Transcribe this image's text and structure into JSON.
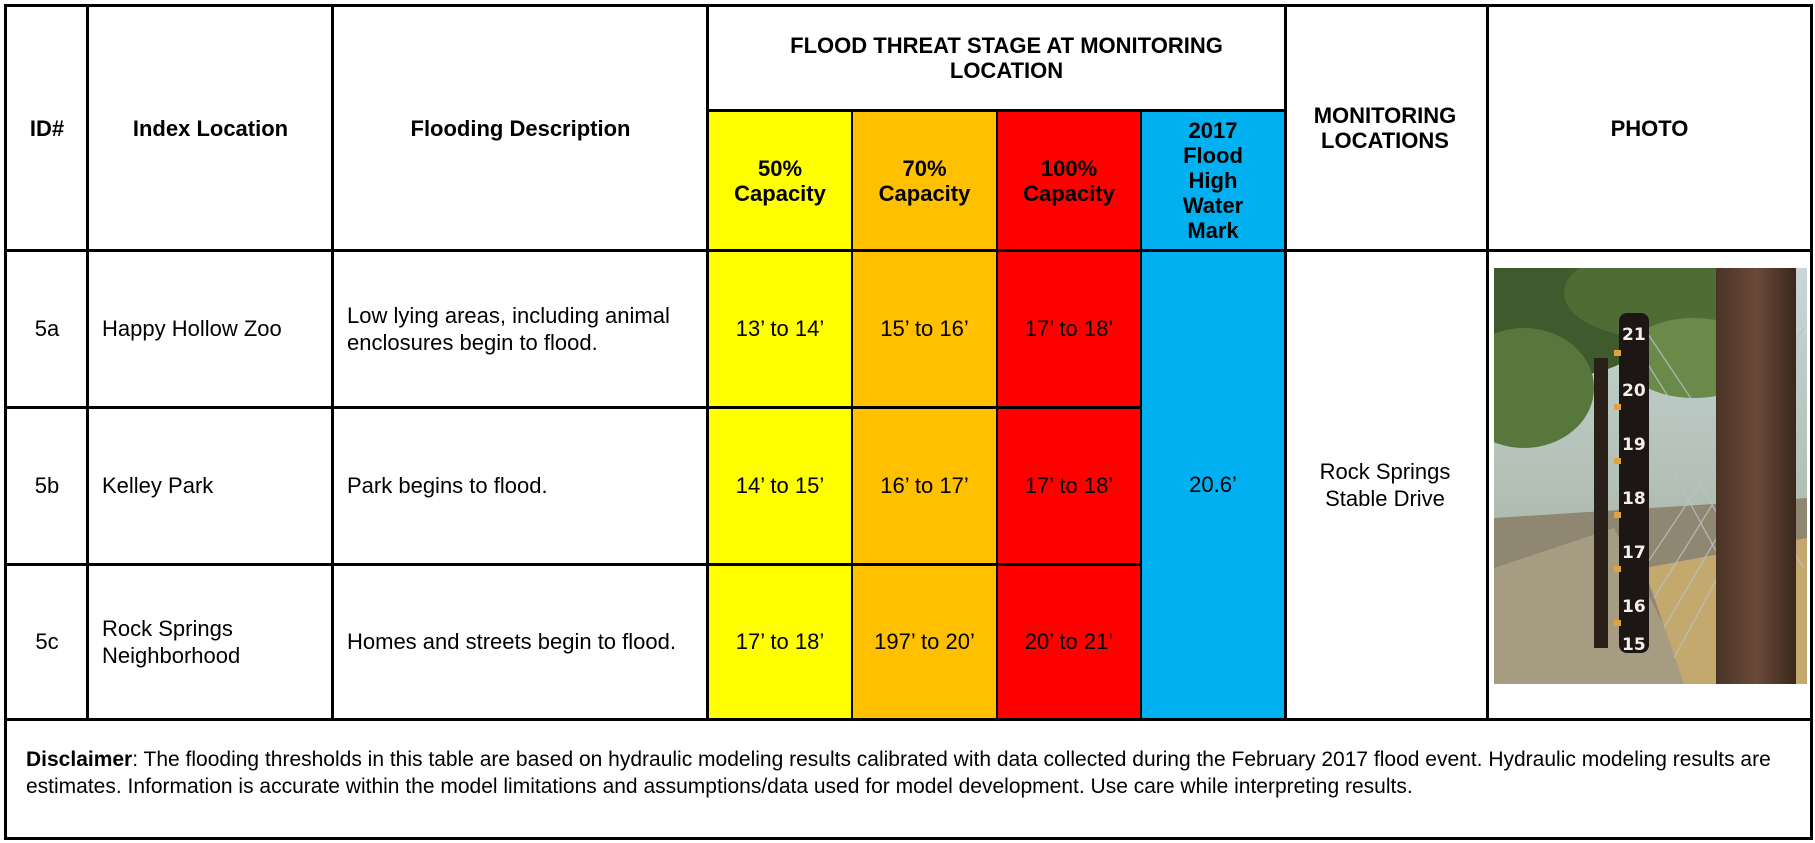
{
  "table": {
    "headers": {
      "id": "ID#",
      "index_location": "Index Location",
      "flooding_description": "Flooding Description",
      "flood_threat_group": "FLOOD THREAT STAGE AT MONITORING LOCATION",
      "cap50": "50% Capacity",
      "cap70": "70% Capacity",
      "cap100": "100% Capacity",
      "hwm": "2017 Flood High Water Mark",
      "monitoring": "MONITORING LOCATIONS",
      "photo": "PHOTO"
    },
    "rows": [
      {
        "id": "5a",
        "location": "Happy Hollow Zoo",
        "description": "Low lying areas, including animal enclosures begin to flood.",
        "cap50": "13’ to 14’",
        "cap70": "15’ to 16’",
        "cap100": "17’ to 18’"
      },
      {
        "id": "5b",
        "location": "Kelley Park",
        "description": "Park begins to flood.",
        "cap50": "14’ to 15’",
        "cap70": "16’ to 17’",
        "cap100": "17’ to 18’"
      },
      {
        "id": "5c",
        "location": "Rock Springs Neighborhood",
        "description": "Homes and streets begin to flood.",
        "cap50": "17’ to 18’",
        "cap70": "197’ to 20’",
        "cap100": "20’ to 21’"
      }
    ],
    "high_water_mark": "20.6’",
    "monitoring_location": "Rock Springs Stable Drive",
    "photo_gauge_marks": [
      "21",
      "20",
      "19",
      "18",
      "17",
      "16",
      "15"
    ]
  },
  "disclaimer": {
    "label": "Disclaimer",
    "text": ": The flooding thresholds in this table are based on hydraulic modeling results calibrated with data collected during the February 2017 flood event.  Hydraulic modeling results are estimates.  Information is accurate within the model limitations and assumptions/data used for model development.  Use care while interpreting results."
  },
  "colors": {
    "cap50": "#ffff00",
    "cap70": "#ffc000",
    "cap100": "#ff0000",
    "hwm": "#00b0f0"
  }
}
